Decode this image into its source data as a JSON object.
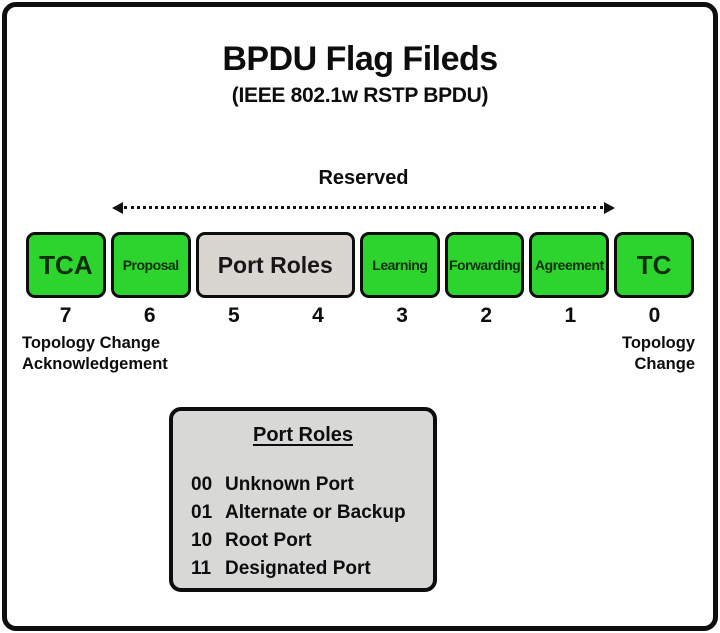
{
  "title": "BPDU Flag Fileds",
  "subtitle": "(IEEE 802.1w RSTP BPDU)",
  "reserved_label": "Reserved",
  "fields": [
    {
      "label": "TCA"
    },
    {
      "label": "Proposal"
    },
    {
      "label": "Port Roles"
    },
    {
      "label": "Learning"
    },
    {
      "label": "Forwarding"
    },
    {
      "label": "Agreement"
    },
    {
      "label": "TC"
    }
  ],
  "bit_numbers": [
    "7",
    "6",
    "5",
    "4",
    "3",
    "2",
    "1",
    "0"
  ],
  "left_note": {
    "line1": "Topology Change",
    "line2": "Acknowledgement"
  },
  "right_note": {
    "line1": "Topology",
    "line2": "Change"
  },
  "legend": {
    "title": "Port Roles",
    "entries": [
      {
        "code": "00",
        "label": "Unknown Port"
      },
      {
        "code": "01",
        "label": "Alternate or Backup"
      },
      {
        "code": "10",
        "label": "Root Port"
      },
      {
        "code": "11",
        "label": "Designated Port"
      }
    ]
  },
  "colors": {
    "field_green": "#2ed42e",
    "field_gray": "#d9d5d0",
    "legend_gray": "#d8d8d6",
    "ink": "#111111"
  }
}
